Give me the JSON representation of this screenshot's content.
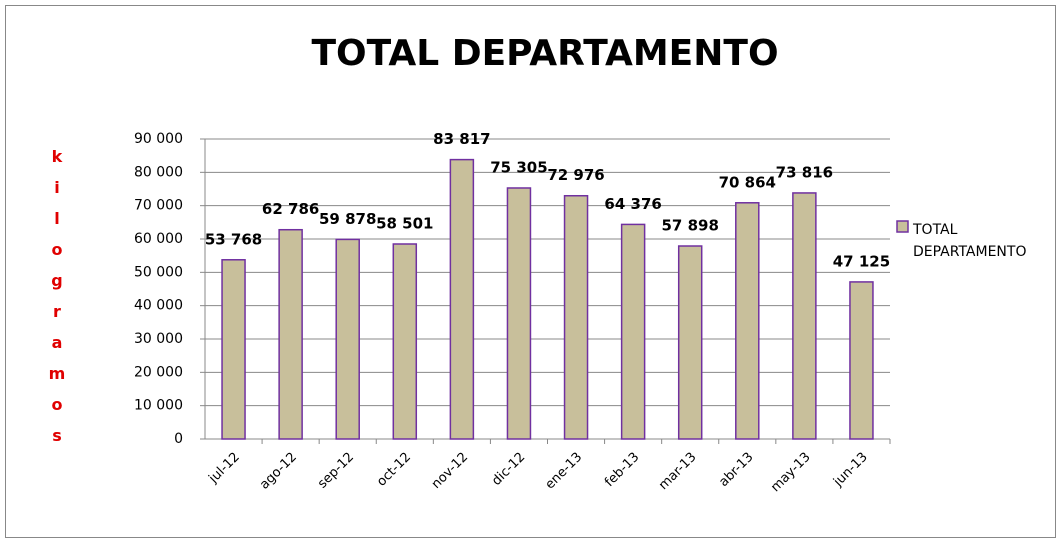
{
  "chart_data": {
    "type": "bar",
    "title": "TOTAL DEPARTAMENTO",
    "y_label": "kilogramos",
    "categories": [
      "jul-12",
      "ago-12",
      "sep-12",
      "oct-12",
      "nov-12",
      "dic-12",
      "ene-13",
      "feb-13",
      "mar-13",
      "abr-13",
      "may-13",
      "jun-13"
    ],
    "series": [
      {
        "name": "TOTAL DEPARTAMENTO",
        "color": "#c8bf9b",
        "edge": "#7030a0",
        "values": [
          53768,
          62786,
          59878,
          58501,
          83817,
          75305,
          72976,
          64376,
          57898,
          70864,
          73816,
          47125
        ],
        "value_labels": [
          "53 768",
          "62 786",
          "59 878",
          "58 501",
          "83 817",
          "75 305",
          "72 976",
          "64 376",
          "57 898",
          "70 864",
          "73 816",
          "47 125"
        ]
      }
    ],
    "ylim": [
      0,
      90000
    ],
    "yticks": [
      0,
      {
        "value": 10000,
        "label": "10 000"
      },
      {
        "value": 20000,
        "label": "20 000"
      },
      {
        "value": 30000,
        "label": "30 000"
      },
      {
        "value": 40000,
        "label": "40 000"
      },
      {
        "value": 50000,
        "label": "50 000"
      },
      {
        "value": 60000,
        "label": "60 000"
      },
      {
        "value": 70000,
        "label": "70 000"
      },
      {
        "value": 80000,
        "label": "80 000"
      },
      {
        "value": 90000,
        "label": "90 000"
      }
    ],
    "grid": true,
    "legend": "right"
  }
}
